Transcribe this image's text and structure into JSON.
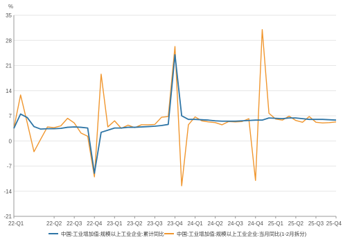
{
  "chart_data": {
    "type": "line",
    "unit": "%",
    "ylim": [
      -21,
      35
    ],
    "yticks": [
      35,
      28,
      21,
      14,
      7,
      0,
      -7,
      -14,
      -21
    ],
    "grid": true,
    "legend_position": "bottom",
    "x_tick_labels": [
      {
        "label": "22-Q1",
        "i": 0
      },
      {
        "label": "22-Q2",
        "i": 6
      },
      {
        "label": "22-Q3",
        "i": 9
      },
      {
        "label": "22-Q4",
        "i": 12
      },
      {
        "label": "23-Q1",
        "i": 15
      },
      {
        "label": "23-Q2",
        "i": 18
      },
      {
        "label": "23-Q3",
        "i": 21
      },
      {
        "label": "23-Q4",
        "i": 24
      },
      {
        "label": "24-Q1",
        "i": 27
      },
      {
        "label": "24-Q2",
        "i": 30
      },
      {
        "label": "24-Q3",
        "i": 33
      },
      {
        "label": "24-Q4",
        "i": 36
      },
      {
        "label": "25-Q1",
        "i": 39
      },
      {
        "label": "25-Q2",
        "i": 42
      },
      {
        "label": "25-Q3",
        "i": 45
      },
      {
        "label": "25-Q4",
        "i": 48
      }
    ],
    "series": [
      {
        "name": "中国:工业增加值:规模以上工业企业:累计同比",
        "color": "#2e75a6",
        "values": [
          3.5,
          7.5,
          6.5,
          4.0,
          3.3,
          3.4,
          3.4,
          3.5,
          3.8,
          3.9,
          3.8,
          3.6,
          -9.0,
          2.4,
          3.0,
          3.6,
          3.6,
          3.8,
          3.8,
          3.9,
          4.0,
          4.1,
          4.3,
          4.6,
          24.0,
          7.0,
          6.0,
          6.0,
          5.9,
          5.8,
          5.6,
          5.5,
          5.5,
          5.5,
          5.6,
          5.7,
          5.8,
          5.8,
          6.4,
          6.3,
          6.2,
          6.4,
          6.4,
          6.2,
          6.0,
          6.0,
          6.0,
          5.9,
          5.8
        ]
      },
      {
        "name": "中国:工业增加值:规模以上工业企业:当月同比(1-2月拆分)",
        "color": "#f0962e",
        "values": [
          3.5,
          12.8,
          5.0,
          -3.0,
          0.5,
          3.9,
          3.7,
          4.2,
          6.3,
          5.0,
          2.2,
          1.3,
          -10.0,
          18.6,
          3.9,
          5.6,
          3.5,
          4.4,
          3.7,
          4.5,
          4.5,
          4.6,
          6.6,
          6.8,
          26.3,
          -12.5,
          4.5,
          6.7,
          5.6,
          5.3,
          5.1,
          4.5,
          5.4,
          5.3,
          5.4,
          6.2,
          -11.0,
          31.0,
          7.7,
          6.1,
          5.8,
          6.9,
          5.7,
          5.2,
          6.8,
          5.2,
          5.0,
          5.1,
          5.3
        ]
      }
    ]
  }
}
